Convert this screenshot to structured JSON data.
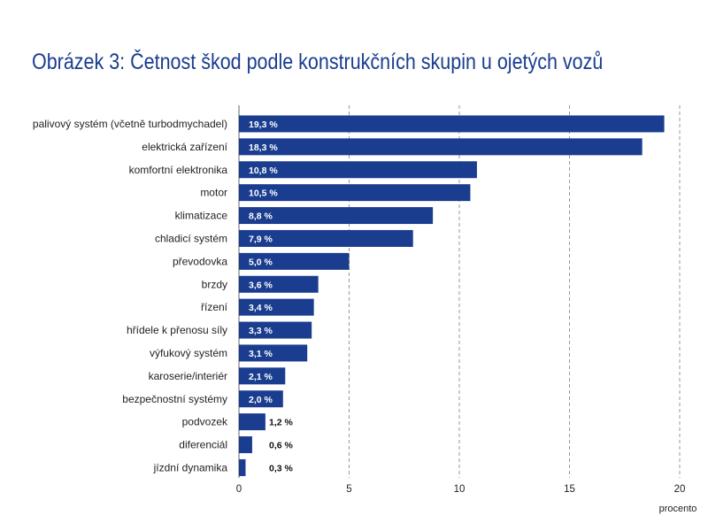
{
  "chart_data": {
    "type": "bar",
    "orientation": "horizontal",
    "title": "Obrázek 3: Četnost škod podle konstrukčních skupin u ojetých vozů",
    "xlabel": "procento",
    "ylabel": "",
    "xlim": [
      0,
      20
    ],
    "xticks": [
      0,
      5,
      10,
      15,
      20
    ],
    "grid": "vertical dashed",
    "bar_color": "#1a3d8f",
    "categories": [
      "palivový systém (včetně turbodmychadel)",
      "elektrická zařízení",
      "komfortní elektronika",
      "motor",
      "klimatizace",
      "chladicí systém",
      "převodovka",
      "brzdy",
      "řízení",
      "hřídele k přenosu síly",
      "výfukový systém",
      "karoserie/interiér",
      "bezpečnostní systémy",
      "podvozek",
      "diferenciál",
      "jízdní dynamika"
    ],
    "values": [
      19.3,
      18.3,
      10.8,
      10.5,
      8.8,
      7.9,
      5.0,
      3.6,
      3.4,
      3.3,
      3.1,
      2.1,
      2.0,
      1.2,
      0.6,
      0.3
    ],
    "value_labels": [
      "19,3 %",
      "18,3 %",
      "10,8 %",
      "10,5 %",
      "8,8 %",
      "7,9 %",
      "5,0 %",
      "3,6 %",
      "3,4 %",
      "3,3 %",
      "3,1 %",
      "2,1 %",
      "2,0 %",
      "1,2 %",
      "0,6 %",
      "0,3 %"
    ],
    "tick_labels": [
      "0",
      "5",
      "10",
      "15",
      "20"
    ]
  }
}
